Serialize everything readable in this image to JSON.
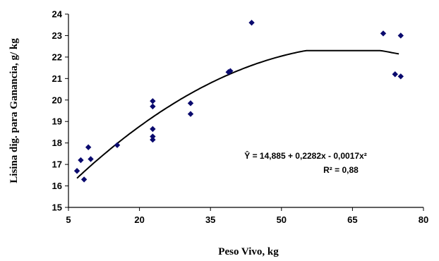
{
  "chart_data": {
    "type": "scatter",
    "title": "",
    "xlabel": "Peso Vivo, kg",
    "ylabel": "Lisina dig. para Ganancia, g/ kg",
    "xlim": [
      5,
      80
    ],
    "ylim": [
      15,
      24
    ],
    "x_ticks": [
      "5",
      "20",
      "35",
      "50",
      "65",
      "80"
    ],
    "y_ticks": [
      "15",
      "16",
      "17",
      "18",
      "19",
      "20",
      "21",
      "22",
      "23",
      "24"
    ],
    "grid": false,
    "legend": "none",
    "marker_color": "#0a0a6e",
    "line_color": "#000000",
    "series": [
      {
        "points": [
          {
            "x": 6.8,
            "y": 16.7
          },
          {
            "x": 7.6,
            "y": 17.2
          },
          {
            "x": 8.3,
            "y": 16.3
          },
          {
            "x": 9.2,
            "y": 17.8
          },
          {
            "x": 9.7,
            "y": 17.25
          },
          {
            "x": 15.3,
            "y": 17.9
          },
          {
            "x": 22.8,
            "y": 19.95
          },
          {
            "x": 22.8,
            "y": 19.7
          },
          {
            "x": 22.8,
            "y": 18.65
          },
          {
            "x": 22.8,
            "y": 18.3
          },
          {
            "x": 22.8,
            "y": 18.15
          },
          {
            "x": 30.8,
            "y": 19.85
          },
          {
            "x": 30.8,
            "y": 19.35
          },
          {
            "x": 38.8,
            "y": 21.3
          },
          {
            "x": 39.2,
            "y": 21.35
          },
          {
            "x": 43.7,
            "y": 23.6
          },
          {
            "x": 71.5,
            "y": 23.1
          },
          {
            "x": 74.0,
            "y": 21.2
          },
          {
            "x": 75.2,
            "y": 23.0
          },
          {
            "x": 75.2,
            "y": 21.1
          }
        ]
      }
    ],
    "trendline": {
      "intercept": 14.885,
      "linear": 0.2282,
      "quadratic": -0.0017,
      "x_from": 6.8,
      "x_to": 75.2,
      "cap_value": 22.3
    },
    "annotations": {
      "equation": "Ŷ = 14,885 + 0,2282x - 0,0017x²",
      "r2": "R² = 0,88"
    }
  }
}
